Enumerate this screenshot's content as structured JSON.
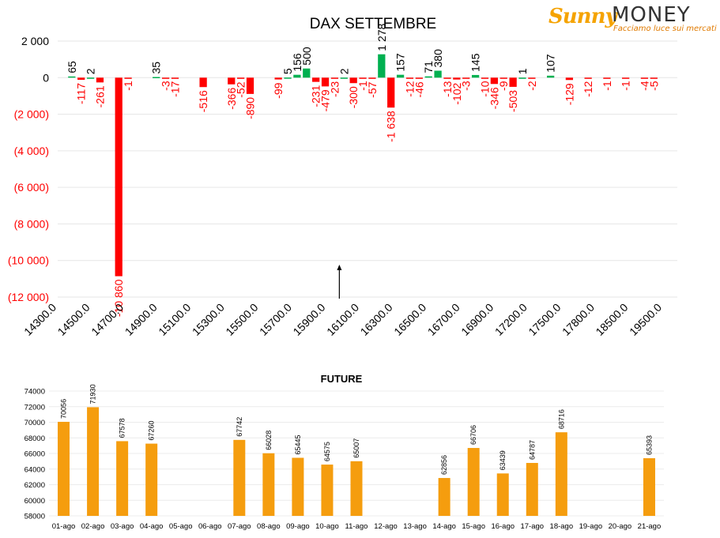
{
  "logo": {
    "brand_a": "Sunny",
    "brand_b": "MONEY",
    "tagline": "Facciamo luce sui mercati"
  },
  "colors": {
    "positive": "#00b050",
    "negative": "#ff0000",
    "future_bar": "#f59d0e",
    "axis_text": "#000000",
    "neg_text": "#ff0000"
  },
  "chart_data": [
    {
      "type": "bar",
      "title": "DAX SETTEMBRE",
      "ylim": [
        -12000,
        2000
      ],
      "yticks": [
        {
          "v": 2000,
          "label": "2 000"
        },
        {
          "v": 0,
          "label": "0"
        },
        {
          "v": -2000,
          "label": "(2 000)"
        },
        {
          "v": -4000,
          "label": "(4 000)"
        },
        {
          "v": -6000,
          "label": "(6 000)"
        },
        {
          "v": -8000,
          "label": "(8 000)"
        },
        {
          "v": -10000,
          "label": "(10 000)"
        },
        {
          "v": -12000,
          "label": "(12 000)"
        }
      ],
      "xtick_labels": [
        "14300.0",
        "14500.0",
        "14700.0",
        "14900.0",
        "15100.0",
        "15300.0",
        "15500.0",
        "15700.0",
        "15900.0",
        "16100.0",
        "16300.0",
        "16500.0",
        "16700.0",
        "16900.0",
        "17200.0",
        "17500.0",
        "17800.0",
        "18500.0",
        "19500.0"
      ],
      "category_count": 66,
      "bars": [
        {
          "i": 1,
          "value": 65,
          "label": "65"
        },
        {
          "i": 2,
          "value": -117,
          "label": "-117"
        },
        {
          "i": 3,
          "value": 2,
          "label": "2"
        },
        {
          "i": 4,
          "value": -261,
          "label": "-261"
        },
        {
          "i": 6,
          "value": -10860,
          "label": "-10 860"
        },
        {
          "i": 7,
          "value": -1,
          "label": "-1"
        },
        {
          "i": 10,
          "value": 35,
          "label": "35"
        },
        {
          "i": 11,
          "value": -3,
          "label": "-3"
        },
        {
          "i": 12,
          "value": -17,
          "label": "-17"
        },
        {
          "i": 15,
          "value": -516,
          "label": "-516"
        },
        {
          "i": 18,
          "value": -366,
          "label": "-366"
        },
        {
          "i": 19,
          "value": -52,
          "label": "-52"
        },
        {
          "i": 20,
          "value": -890,
          "label": "-890"
        },
        {
          "i": 23,
          "value": -99,
          "label": "-99"
        },
        {
          "i": 24,
          "value": 5,
          "label": "5"
        },
        {
          "i": 25,
          "value": 156,
          "label": "156"
        },
        {
          "i": 26,
          "value": 500,
          "label": "500"
        },
        {
          "i": 27,
          "value": -231,
          "label": "-231"
        },
        {
          "i": 28,
          "value": -479,
          "label": "-479"
        },
        {
          "i": 29,
          "value": -23,
          "label": "-23"
        },
        {
          "i": 30,
          "value": 2,
          "label": "2"
        },
        {
          "i": 31,
          "value": -300,
          "label": "-300"
        },
        {
          "i": 32,
          "value": -1,
          "label": "-1"
        },
        {
          "i": 33,
          "value": -57,
          "label": "-57"
        },
        {
          "i": 34,
          "value": 1278,
          "label": "1 278"
        },
        {
          "i": 35,
          "value": -1638,
          "label": "-1 638"
        },
        {
          "i": 36,
          "value": 157,
          "label": "157"
        },
        {
          "i": 37,
          "value": -12,
          "label": "-12"
        },
        {
          "i": 38,
          "value": -46,
          "label": "-46"
        },
        {
          "i": 39,
          "value": 71,
          "label": "71"
        },
        {
          "i": 40,
          "value": 380,
          "label": "380"
        },
        {
          "i": 41,
          "value": -13,
          "label": "-13"
        },
        {
          "i": 42,
          "value": -102,
          "label": "-102"
        },
        {
          "i": 43,
          "value": -3,
          "label": "-3"
        },
        {
          "i": 44,
          "value": 145,
          "label": "145"
        },
        {
          "i": 45,
          "value": -10,
          "label": "-10"
        },
        {
          "i": 46,
          "value": -346,
          "label": "-346"
        },
        {
          "i": 47,
          "value": -9,
          "label": "-9"
        },
        {
          "i": 48,
          "value": -503,
          "label": "-503"
        },
        {
          "i": 49,
          "value": 1,
          "label": "1"
        },
        {
          "i": 50,
          "value": -2,
          "label": "-2"
        },
        {
          "i": 52,
          "value": 107,
          "label": "107"
        },
        {
          "i": 54,
          "value": -129,
          "label": "-129"
        },
        {
          "i": 56,
          "value": -12,
          "label": "-12"
        },
        {
          "i": 58,
          "value": -1,
          "label": "-1"
        },
        {
          "i": 60,
          "value": -1,
          "label": "-1"
        },
        {
          "i": 62,
          "value": -4,
          "label": "-4"
        },
        {
          "i": 63,
          "value": -5,
          "label": "-5"
        }
      ],
      "marker_position_index": 29.5
    },
    {
      "type": "bar",
      "title": "FUTURE",
      "ylim": [
        58000,
        74000
      ],
      "yticks": [
        58000,
        60000,
        62000,
        64000,
        66000,
        68000,
        70000,
        72000,
        74000
      ],
      "categories": [
        "01-ago",
        "02-ago",
        "03-ago",
        "04-ago",
        "05-ago",
        "06-ago",
        "07-ago",
        "08-ago",
        "09-ago",
        "10-ago",
        "11-ago",
        "12-ago",
        "13-ago",
        "14-ago",
        "15-ago",
        "16-ago",
        "17-ago",
        "18-ago",
        "19-ago",
        "20-ago",
        "21-ago"
      ],
      "values": [
        70056,
        71930,
        67578,
        67260,
        null,
        null,
        67742,
        66028,
        65445,
        64575,
        65007,
        null,
        null,
        62856,
        66706,
        63439,
        64787,
        68716,
        null,
        null,
        65393
      ]
    }
  ]
}
